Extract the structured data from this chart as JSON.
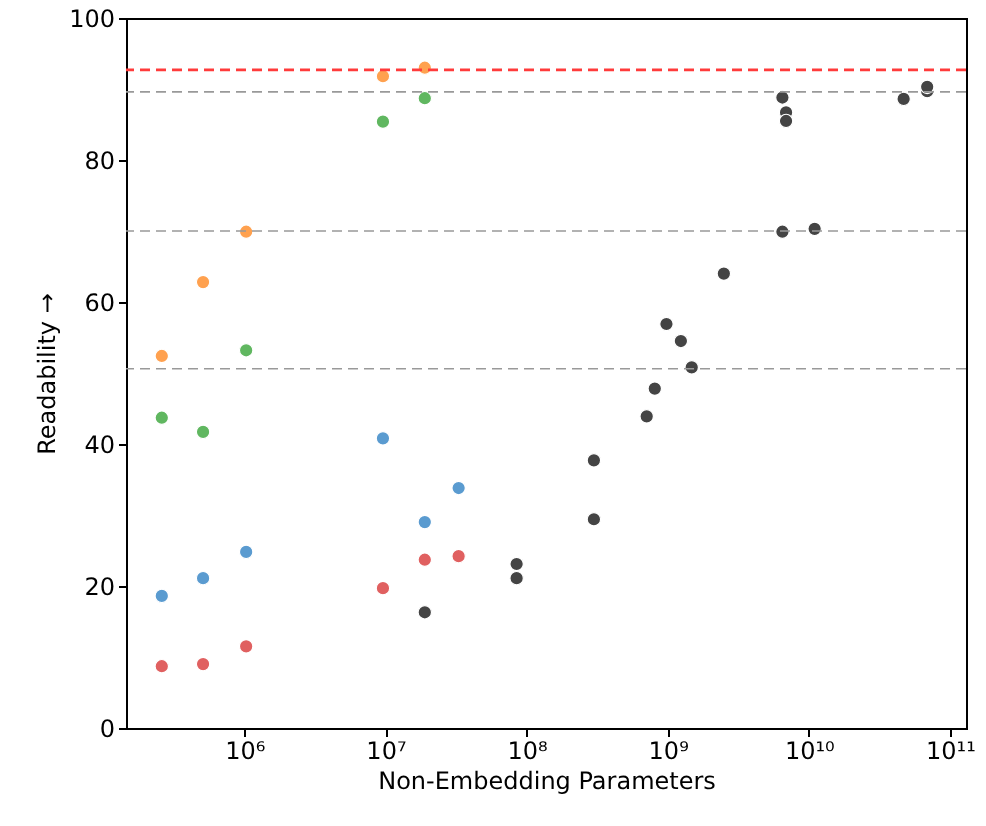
{
  "chart_data": {
    "type": "scatter",
    "xlabel": "Non-Embedding Parameters",
    "ylabel": "Readability →",
    "log": "x",
    "grid": false,
    "marker": "circle",
    "xlim": [
      145000,
      130000000000
    ],
    "xticks": [
      {
        "value": 1000000,
        "label": "10⁶"
      },
      {
        "value": 10000000,
        "label": "10⁷"
      },
      {
        "value": 100000000,
        "label": "10⁸"
      },
      {
        "value": 1000000000,
        "label": "10⁹"
      },
      {
        "value": 10000000000,
        "label": "10¹⁰"
      },
      {
        "value": 100000000000,
        "label": "10¹¹"
      }
    ],
    "ylim": [
      0,
      100
    ],
    "yticks": [
      0,
      20,
      40,
      60,
      80,
      100
    ],
    "series": [
      {
        "color": "#ffa14f",
        "x": [
          260000,
          510000,
          1030000,
          9600000,
          19000000
        ],
        "values": [
          52.4,
          62.8,
          69.9,
          91.8,
          93.0
        ]
      },
      {
        "color": "#60b760",
        "x": [
          260000,
          510000,
          1030000,
          9600000,
          19000000
        ],
        "values": [
          43.7,
          41.7,
          53.2,
          85.4,
          88.7
        ]
      },
      {
        "color": "#5a9bd0",
        "x": [
          260000,
          510000,
          1030000,
          9600000,
          19000000,
          33000000
        ],
        "values": [
          18.6,
          21.1,
          24.8,
          40.8,
          29.0,
          33.8
        ]
      },
      {
        "color": "#e06060",
        "x": [
          260000,
          510000,
          1030000,
          9600000,
          19000000,
          33000000
        ],
        "values": [
          8.7,
          9.0,
          11.5,
          19.7,
          23.7,
          24.2
        ]
      },
      {
        "color": "#444444",
        "x": [
          19000000,
          85000000,
          85000000,
          300000000,
          300000000,
          710000000,
          810000000,
          980000000,
          1240000000,
          1480000000,
          2500000000,
          6500000000,
          11000000000,
          6500000000,
          6900000000,
          6900000000,
          47000000000,
          69000000000,
          69000000000
        ],
        "values": [
          16.3,
          23.1,
          21.1,
          37.7,
          29.4,
          43.9,
          47.8,
          56.9,
          54.5,
          50.8,
          64.0,
          69.9,
          70.3,
          88.8,
          86.7,
          85.5,
          88.6,
          89.7,
          90.3
        ]
      }
    ],
    "ref_lines": [
      {
        "axis": "y",
        "value": 92.7,
        "color": "#ff3b3b",
        "line_style": "dashed"
      },
      {
        "axis": "y",
        "value": 89.6,
        "color": "#999999",
        "line_style": "dashed"
      },
      {
        "axis": "y",
        "value": 70.0,
        "color": "#999999",
        "line_style": "dashed"
      },
      {
        "axis": "y",
        "value": 50.6,
        "color": "#999999",
        "line_style": "dashed"
      }
    ]
  }
}
